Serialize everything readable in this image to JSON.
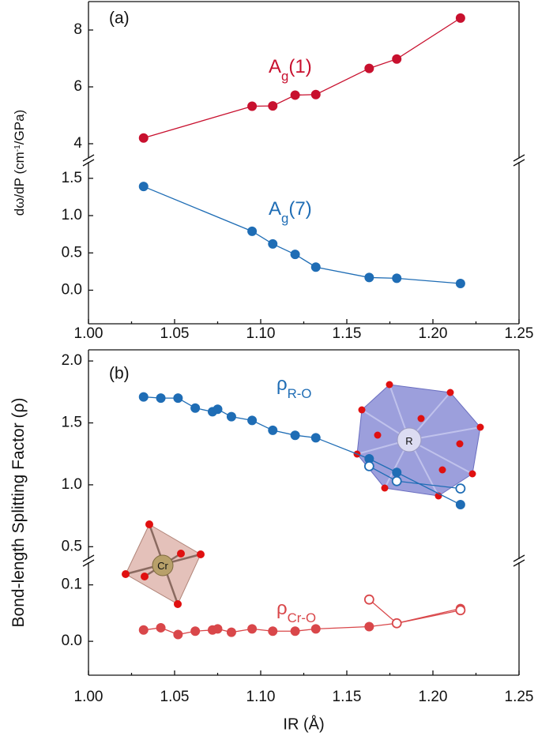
{
  "chart_data": [
    {
      "type": "line",
      "label": "(a)",
      "ylabel": {
        "before": "dω/dP (cm",
        "sup": "-1",
        "after": "/GPa)"
      },
      "xlim": [
        1.0,
        1.25
      ],
      "xticks": [
        {
          "value": 1.0,
          "label": "1.00"
        },
        1.05,
        {
          "value": 1.1,
          "label": "1.10"
        },
        1.15,
        {
          "value": 1.2,
          "label": "1.20"
        },
        1.25
      ],
      "segments": [
        {
          "ylim": [
            3.5,
            9
          ],
          "yticks": [
            4,
            6,
            8
          ],
          "series": [
            {
              "label": {
                "main": "A",
                "sub": "g",
                "after": "(1)"
              },
              "color": "#c8102e",
              "marker": "filled",
              "x": [
                1.032,
                1.095,
                1.107,
                1.12,
                1.132,
                1.163,
                1.179,
                1.216
              ],
              "values": [
                4.2,
                5.32,
                5.33,
                5.71,
                5.73,
                6.65,
                6.98,
                8.42
              ]
            }
          ]
        },
        {
          "ylim": [
            -0.45,
            1.72
          ],
          "yticks": [
            {
              "value": 0,
              "label": "0.0"
            },
            0.5,
            {
              "value": 1,
              "label": "1.0"
            },
            1.5
          ],
          "series": [
            {
              "label": {
                "main": "A",
                "sub": "g",
                "after": "(7)"
              },
              "color": "#1f6db5",
              "marker": "filled",
              "x": [
                1.032,
                1.095,
                1.107,
                1.12,
                1.132,
                1.163,
                1.179,
                1.216
              ],
              "values": [
                1.39,
                0.79,
                0.62,
                0.48,
                0.31,
                0.17,
                0.16,
                0.09
              ]
            }
          ]
        }
      ]
    },
    {
      "type": "line",
      "label": "(b)",
      "ylabel": {
        "before": "Bond-length Splitting Factor (ρ)"
      },
      "xlabel": "IR (Å)",
      "insets": [
        "R",
        "Cr"
      ],
      "xlim": [
        1.0,
        1.25
      ],
      "xticks": [
        {
          "value": 1.0,
          "label": "1.00"
        },
        1.05,
        {
          "value": 1.1,
          "label": "1.10"
        },
        1.15,
        {
          "value": 1.2,
          "label": "1.20"
        },
        1.25
      ],
      "segments": [
        {
          "ylim": [
            0.4,
            2.09
          ],
          "yticks": [
            0.5,
            {
              "value": 1,
              "label": "1.0"
            },
            1.5,
            {
              "value": 2,
              "label": "2.0"
            }
          ],
          "series": [
            {
              "label": {
                "main": "ρ",
                "sub": "R-O"
              },
              "color": "#1f6db5",
              "marker": "filled",
              "x": [
                1.032,
                1.042,
                1.052,
                1.062,
                1.072,
                1.075,
                1.083,
                1.095,
                1.107,
                1.12,
                1.132,
                1.163,
                1.179,
                1.216
              ],
              "values": [
                1.71,
                1.7,
                1.7,
                1.62,
                1.59,
                1.61,
                1.55,
                1.52,
                1.44,
                1.4,
                1.38,
                1.21,
                1.1,
                0.84
              ]
            },
            {
              "color": "#1f6db5",
              "marker": "open",
              "x": [
                1.163,
                1.179,
                1.216
              ],
              "values": [
                1.15,
                1.03,
                0.97
              ]
            }
          ]
        },
        {
          "ylim": [
            -0.06,
            0.14
          ],
          "yticks": [
            {
              "value": 0,
              "label": "0.0"
            },
            0.1
          ],
          "series": [
            {
              "label": {
                "main": "ρ",
                "sub": "Cr-O"
              },
              "color": "#d9474a",
              "marker": "filled",
              "x": [
                1.032,
                1.042,
                1.052,
                1.062,
                1.072,
                1.075,
                1.083,
                1.095,
                1.107,
                1.12,
                1.132,
                1.163,
                1.179,
                1.216
              ],
              "values": [
                0.02,
                0.024,
                0.012,
                0.018,
                0.02,
                0.022,
                0.016,
                0.022,
                0.018,
                0.018,
                0.022,
                0.026,
                0.032,
                0.058
              ]
            },
            {
              "color": "#d9474a",
              "marker": "open",
              "x": [
                1.163,
                1.179,
                1.216
              ],
              "values": [
                0.074,
                0.032,
                0.055
              ]
            }
          ]
        }
      ]
    }
  ]
}
